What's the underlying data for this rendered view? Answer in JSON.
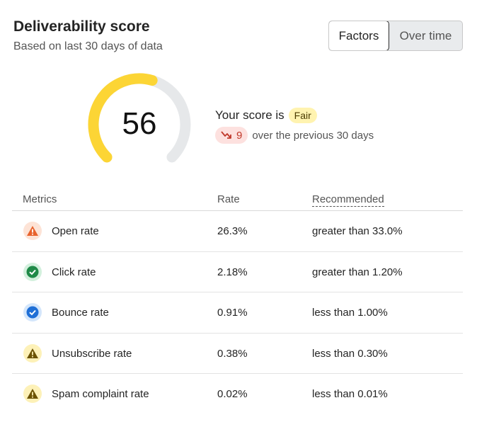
{
  "header": {
    "title": "Deliverability score",
    "subtitle": "Based on last 30 days of data"
  },
  "view_toggle": {
    "options": [
      "Factors",
      "Over time"
    ],
    "selected": "Factors"
  },
  "score": {
    "value": "56",
    "gauge_fraction": 0.56,
    "gauge_color": "#fcd535",
    "track_color": "#e6e8ea",
    "prefix": "Your score is",
    "rating": "Fair",
    "change": "9",
    "change_direction": "down",
    "change_suffix": "over the previous 30 days"
  },
  "table": {
    "columns": [
      "Metrics",
      "Rate",
      "Recommended"
    ],
    "rows": [
      {
        "icon": "warning-orange-icon",
        "metric": "Open rate",
        "rate": "26.3%",
        "recommended": "greater than 33.0%"
      },
      {
        "icon": "check-green-icon",
        "metric": "Click rate",
        "rate": "2.18%",
        "recommended": "greater than 1.20%"
      },
      {
        "icon": "check-blue-icon",
        "metric": "Bounce rate",
        "rate": "0.91%",
        "recommended": "less than 1.00%"
      },
      {
        "icon": "warning-yellow-icon",
        "metric": "Unsubscribe rate",
        "rate": "0.38%",
        "recommended": "less than 0.30%"
      },
      {
        "icon": "warning-yellow-icon",
        "metric": "Spam complaint rate",
        "rate": "0.02%",
        "recommended": "less than 0.01%"
      }
    ]
  }
}
